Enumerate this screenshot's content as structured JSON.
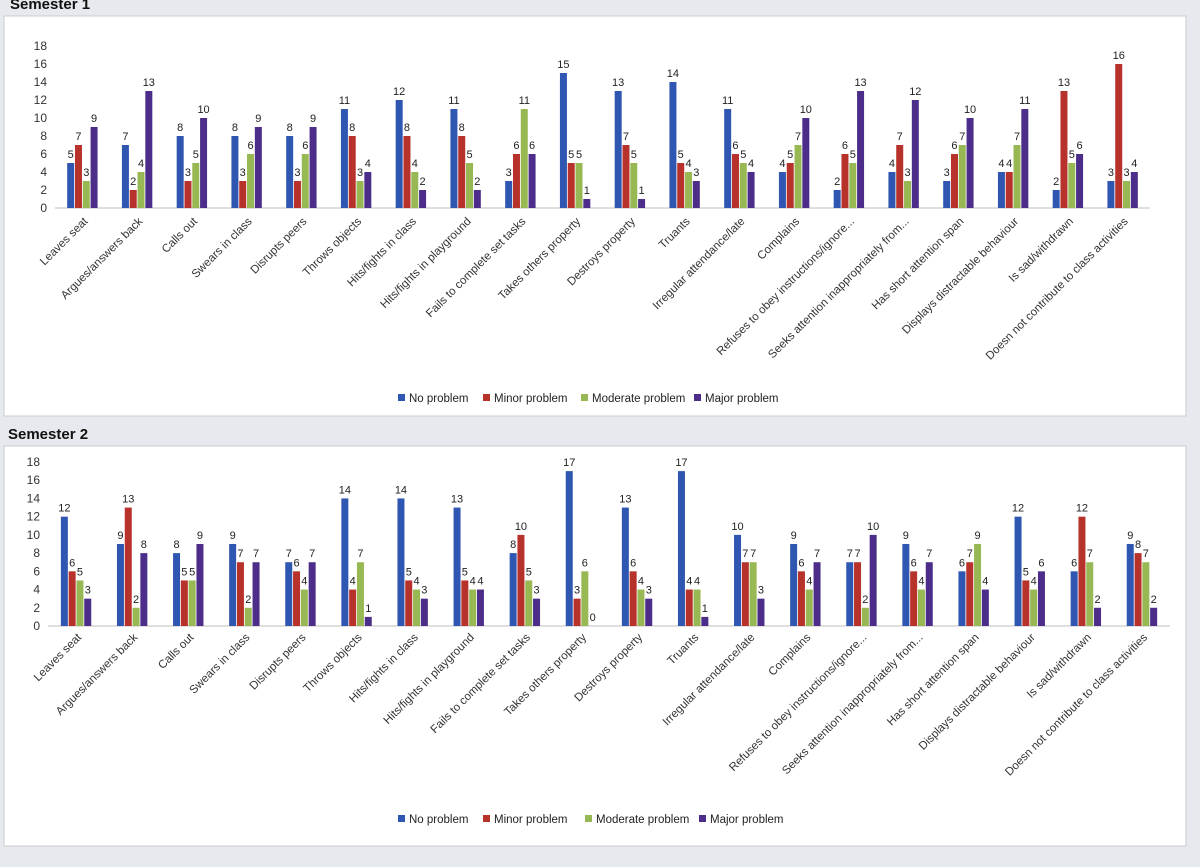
{
  "chart_data": [
    {
      "type": "bar",
      "title": "Semester 1",
      "ylim": [
        0,
        18
      ],
      "yticks": [
        0,
        2,
        4,
        6,
        8,
        10,
        12,
        14,
        16,
        18
      ],
      "grid": false,
      "legend_position": "bottom",
      "categories": [
        "Leaves seat",
        "Argues/answers back",
        "Calls out",
        "Swears in class",
        "Disrupts peers",
        "Throws objects",
        "Hits/fights in class",
        "Hits/fights in playground",
        "Fails to complete set tasks",
        "Takes others property",
        "Destroys property",
        "Truants",
        "Irregular attendance/late",
        "Complains",
        "Refuses to obey instructions/ignore...",
        "Seeks attention inappropriately from...",
        "Has short attention span",
        "Displays distractable behaviour",
        "Is sad/withdrawn",
        "Doesn not contribute to class activities"
      ],
      "series": [
        {
          "name": "No problem",
          "color": "#2f56b0",
          "values": [
            5,
            7,
            8,
            8,
            8,
            11,
            12,
            11,
            3,
            15,
            13,
            14,
            11,
            4,
            2,
            4,
            3,
            4,
            2,
            3
          ]
        },
        {
          "name": "Minor problem",
          "color": "#b8322c",
          "values": [
            7,
            2,
            3,
            3,
            3,
            8,
            8,
            8,
            6,
            5,
            7,
            5,
            6,
            5,
            6,
            7,
            6,
            4,
            13,
            16
          ]
        },
        {
          "name": "Moderate problem",
          "color": "#98b854",
          "values": [
            3,
            4,
            5,
            6,
            6,
            3,
            4,
            5,
            11,
            5,
            5,
            4,
            5,
            7,
            5,
            3,
            7,
            7,
            5,
            3
          ]
        },
        {
          "name": "Major problem",
          "color": "#4c2e8a",
          "values": [
            9,
            13,
            10,
            9,
            9,
            4,
            2,
            2,
            6,
            1,
            1,
            3,
            4,
            10,
            13,
            12,
            10,
            11,
            6,
            4
          ]
        }
      ]
    },
    {
      "type": "bar",
      "title": "Semester 2",
      "ylim": [
        0,
        18
      ],
      "yticks": [
        0,
        2,
        4,
        6,
        8,
        10,
        12,
        14,
        16,
        18
      ],
      "grid": false,
      "legend_position": "bottom",
      "categories": [
        "Leaves seat",
        "Argues/answers back",
        "Calls out",
        "Swears in class",
        "Disrupts peers",
        "Throws objects",
        "Hits/fights in class",
        "Hits/fights in playground",
        "Fails to complete set tasks",
        "Takes others property",
        "Destroys property",
        "Truants",
        "Irregular attendance/late",
        "Complains",
        "Refuses to obey instructions/ignore...",
        "Seeks attention inappropriately from...",
        "Has short attention span",
        "Displays distractable behaviour",
        "Is sad/withdrawn",
        "Doesn not contribute to class activities"
      ],
      "series": [
        {
          "name": "No problem",
          "color": "#2f56b0",
          "values": [
            12,
            9,
            8,
            9,
            7,
            14,
            14,
            13,
            8,
            17,
            13,
            17,
            10,
            9,
            7,
            9,
            6,
            12,
            6,
            9
          ]
        },
        {
          "name": "Minor problem",
          "color": "#b8322c",
          "values": [
            6,
            13,
            5,
            7,
            6,
            4,
            5,
            5,
            10,
            3,
            6,
            4,
            7,
            6,
            7,
            6,
            7,
            5,
            12,
            8
          ]
        },
        {
          "name": "Moderate problem",
          "color": "#98b854",
          "values": [
            5,
            2,
            5,
            2,
            4,
            7,
            4,
            4,
            5,
            6,
            4,
            4,
            7,
            4,
            2,
            4,
            9,
            4,
            7,
            7
          ]
        },
        {
          "name": "Major problem",
          "color": "#4c2e8a",
          "values": [
            3,
            8,
            9,
            7,
            7,
            1,
            3,
            4,
            3,
            0,
            3,
            1,
            3,
            7,
            10,
            7,
            4,
            6,
            2,
            2
          ]
        }
      ]
    }
  ]
}
